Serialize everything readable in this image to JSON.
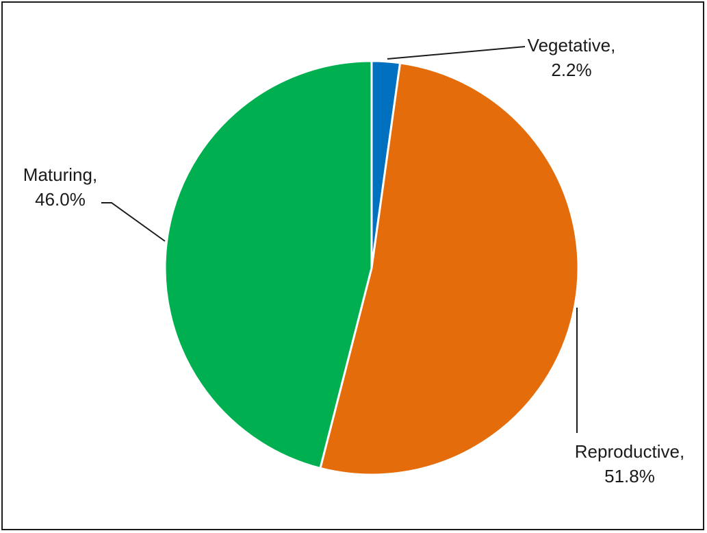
{
  "chart_data": {
    "type": "pie",
    "title": "",
    "start_angle_deg": 0,
    "direction": "clockwise",
    "legend": "none",
    "slices": [
      {
        "label": "Vegetative",
        "value": 2.2,
        "display": "2.2%",
        "color": "#0070C0"
      },
      {
        "label": "Reproductive",
        "value": 51.8,
        "display": "51.8%",
        "color": "#E46C0A"
      },
      {
        "label": "Maturing",
        "value": 46.0,
        "display": "46.0%",
        "color": "#00B050"
      }
    ]
  }
}
